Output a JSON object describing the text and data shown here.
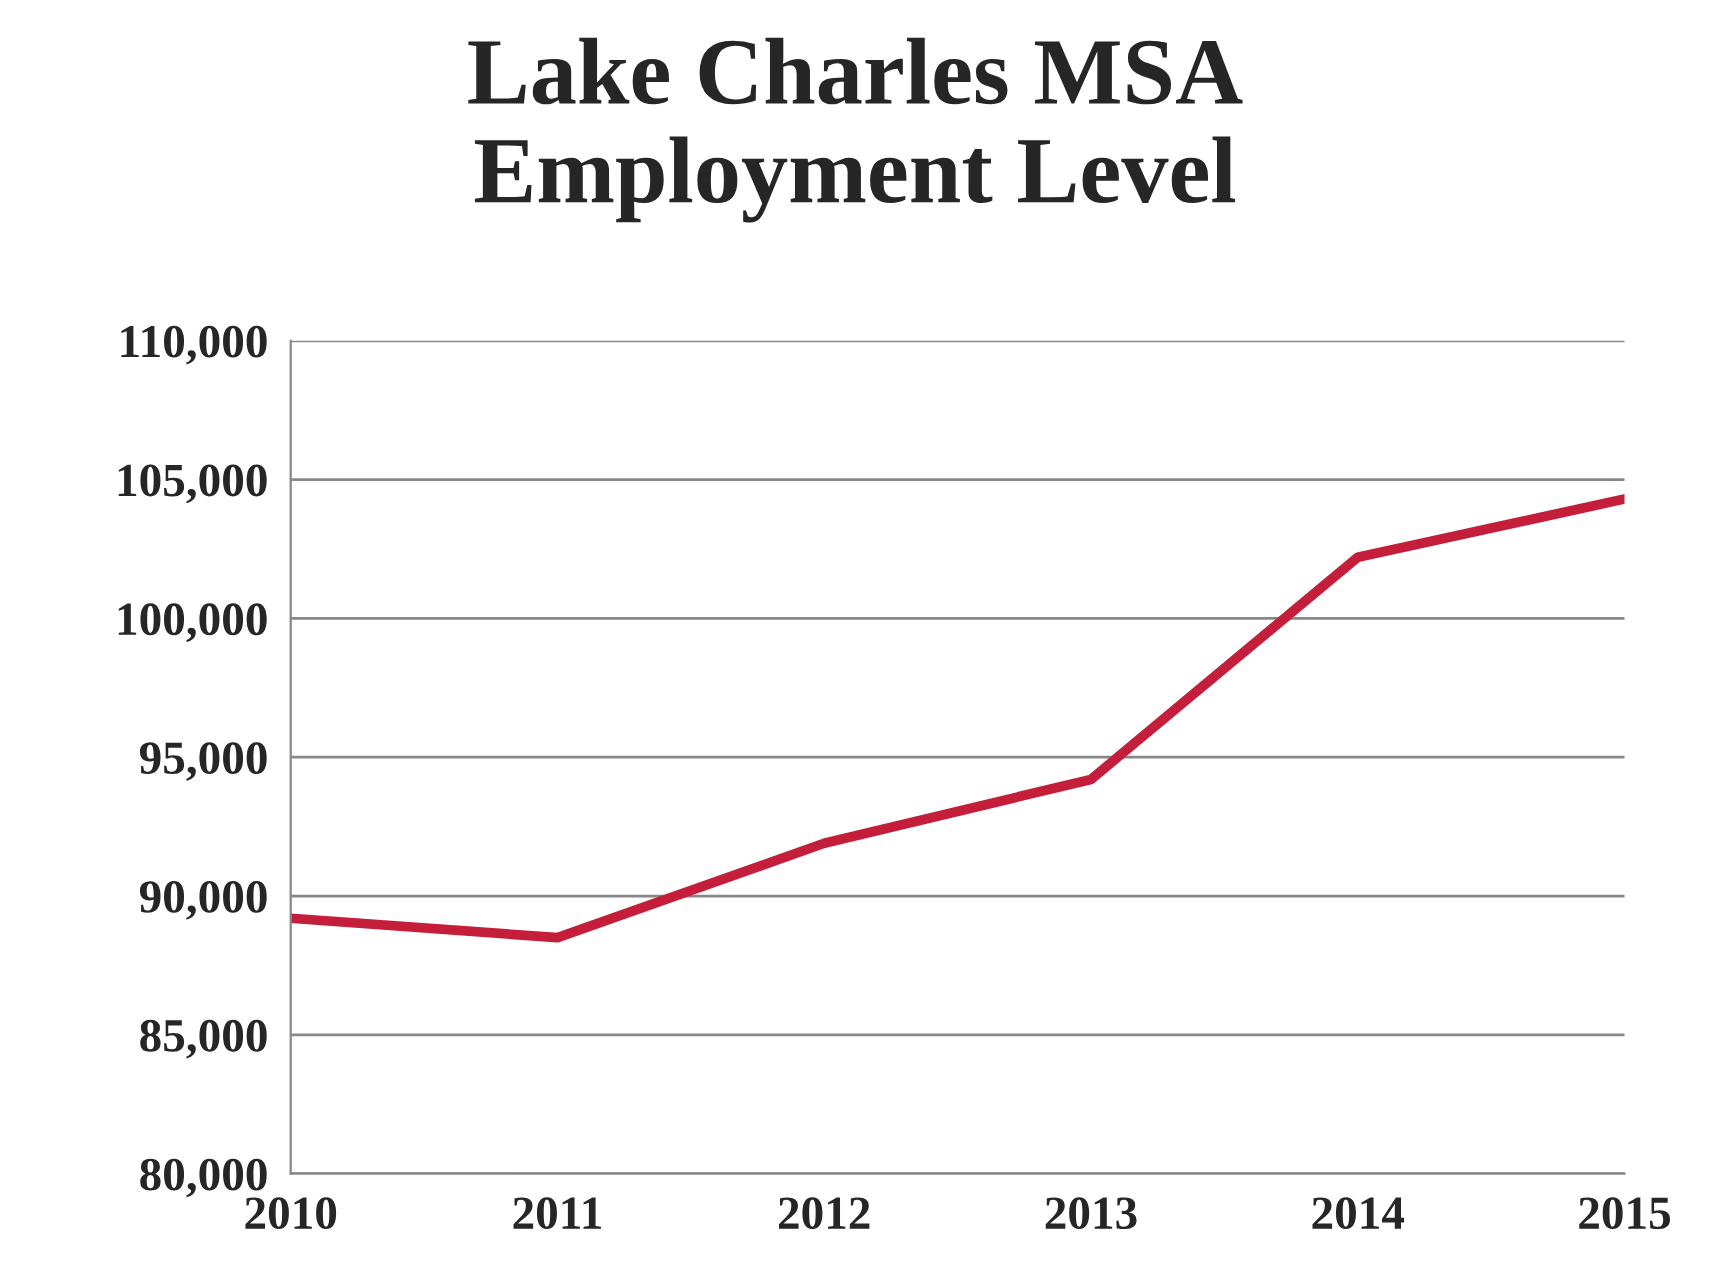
{
  "chart_data": {
    "type": "line",
    "title": "Lake Charles MSA\nEmployment Level",
    "x": [
      2010,
      2011,
      2012,
      2013,
      2014,
      2015
    ],
    "series": [
      {
        "color": "#c41e3a",
        "values": [
          89200,
          88500,
          91900,
          94200,
          102200,
          104300
        ]
      }
    ],
    "xlim": [
      2010,
      2015
    ],
    "xticks": [
      2010,
      2011,
      2012,
      2013,
      2014,
      2015
    ],
    "ylim": [
      80000,
      110000
    ],
    "yticks": [
      {
        "value": 80000,
        "label": "80,000"
      },
      {
        "value": 85000,
        "label": "85,000"
      },
      {
        "value": 90000,
        "label": "90,000"
      },
      {
        "value": 95000,
        "label": "95,000"
      },
      {
        "value": 100000,
        "label": "100,000"
      },
      {
        "value": 105000,
        "label": "105,000"
      },
      {
        "value": 110000,
        "label": "110,000"
      }
    ],
    "grid": "y",
    "marker": "none",
    "line_style": "solid"
  }
}
